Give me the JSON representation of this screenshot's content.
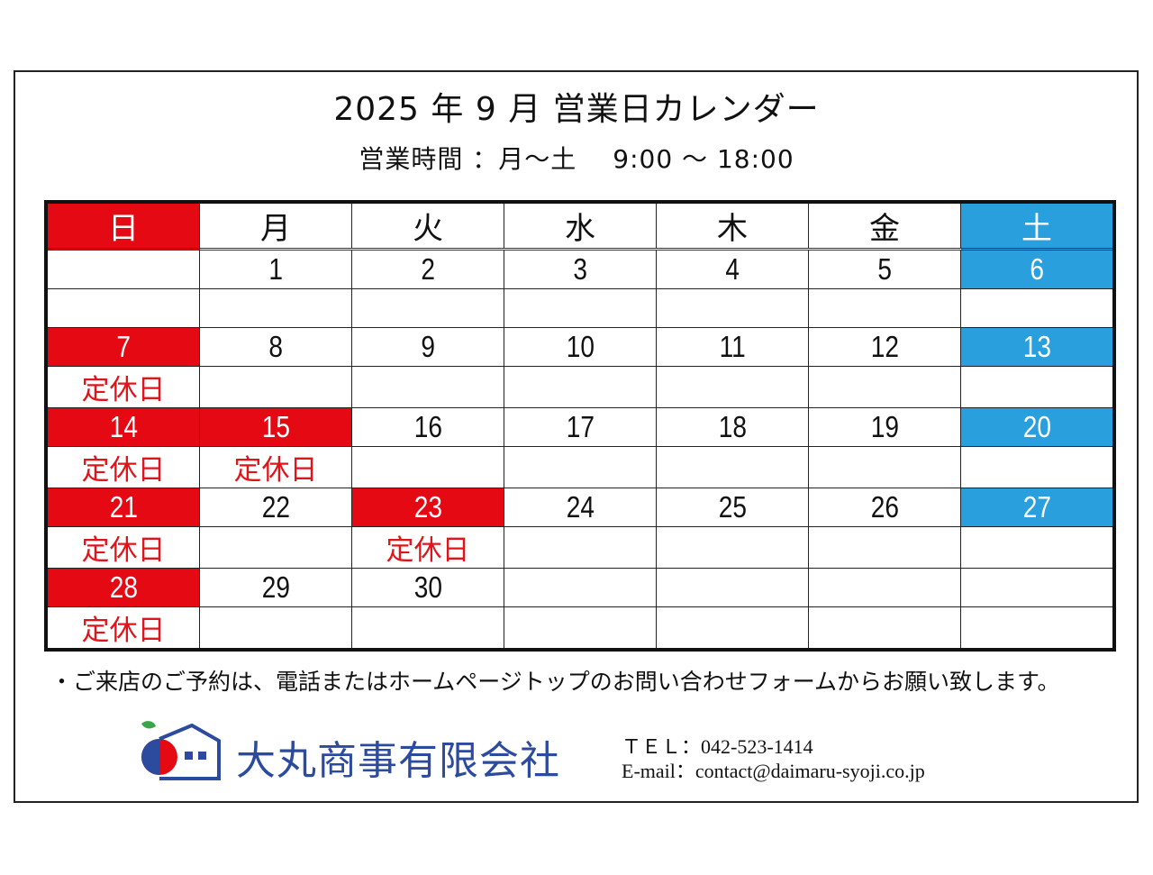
{
  "title": "2025 年 9 月  営業日カレンダー",
  "hours": {
    "label": "営業時間 ：月～土",
    "time": "9:00 ～ 18:00"
  },
  "calendar": {
    "weekdays": [
      "日",
      "月",
      "火",
      "水",
      "木",
      "金",
      "土"
    ],
    "weeks": [
      {
        "days": [
          "",
          "1",
          "2",
          "3",
          "4",
          "5",
          "6"
        ],
        "notes": [
          "",
          "",
          "",
          "",
          "",
          "",
          ""
        ],
        "closed": [
          false,
          false,
          false,
          false,
          false,
          false,
          false
        ]
      },
      {
        "days": [
          "7",
          "8",
          "9",
          "10",
          "11",
          "12",
          "13"
        ],
        "notes": [
          "定休日",
          "",
          "",
          "",
          "",
          "",
          ""
        ],
        "closed": [
          true,
          false,
          false,
          false,
          false,
          false,
          false
        ]
      },
      {
        "days": [
          "14",
          "15",
          "16",
          "17",
          "18",
          "19",
          "20"
        ],
        "notes": [
          "定休日",
          "定休日",
          "",
          "",
          "",
          "",
          ""
        ],
        "closed": [
          true,
          true,
          false,
          false,
          false,
          false,
          false
        ]
      },
      {
        "days": [
          "21",
          "22",
          "23",
          "24",
          "25",
          "26",
          "27"
        ],
        "notes": [
          "定休日",
          "",
          "定休日",
          "",
          "",
          "",
          ""
        ],
        "closed": [
          true,
          false,
          true,
          false,
          false,
          false,
          false
        ]
      },
      {
        "days": [
          "28",
          "29",
          "30",
          "",
          "",
          "",
          ""
        ],
        "notes": [
          "定休日",
          "",
          "",
          "",
          "",
          "",
          ""
        ],
        "closed": [
          true,
          false,
          false,
          false,
          false,
          false,
          false
        ]
      }
    ],
    "colors": {
      "closed": "#e50914",
      "saturday": "#2a9fdd",
      "note": "#e0141b"
    }
  },
  "notice": "・ご来店のご予約は、電話またはホームページトップのお問い合わせフォームからお願い致します。",
  "company": {
    "name": "大丸商事有限会社",
    "brand_color": "#2c4a9e",
    "logo": "house-logo-icon"
  },
  "contact": {
    "tel": "ＴＥＬ：042-523-1414",
    "email": "E-mail：contact@daimaru-syoji.co.jp"
  }
}
